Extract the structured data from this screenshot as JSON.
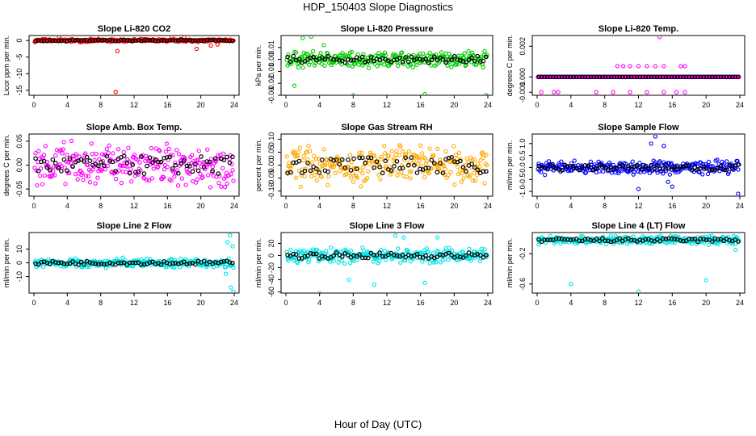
{
  "figure": {
    "title": "HDP_150403  Slope Diagnostics",
    "xlabel": "Hour of Day (UTC)"
  },
  "chart_data": [
    {
      "type": "scatter",
      "title": "Slope Li-820 CO2",
      "ylabel": "Licor ppm per min.",
      "color": "#ff0000",
      "xlim": [
        0,
        24
      ],
      "xticks": [
        0,
        4,
        8,
        12,
        16,
        20,
        24
      ],
      "xtick_labels": [
        "0",
        "4",
        "8",
        "12",
        "16",
        "20",
        "24"
      ],
      "ylim": [
        -16.5,
        1.5
      ],
      "yticks": [
        0,
        -5,
        -10,
        -15
      ],
      "ytick_labels": [
        "0",
        "-5",
        "-10",
        "-15"
      ],
      "series": {
        "base": 0,
        "spread": 0.5,
        "outliers": [
          [
            10,
            -3.2
          ],
          [
            9.8,
            -15.5
          ],
          [
            19.5,
            -2.5
          ],
          [
            21.2,
            -1.5
          ],
          [
            22,
            -1.2
          ],
          [
            18,
            1
          ],
          [
            16.5,
            1.2
          ],
          [
            3,
            1
          ]
        ]
      },
      "reference_color": "#000000"
    },
    {
      "type": "scatter",
      "title": "Slope Li-820 Pressure",
      "ylabel": "kPa per min.",
      "color": "#00cc00",
      "xlim": [
        0,
        24
      ],
      "xticks": [
        0,
        4,
        8,
        12,
        16,
        20,
        24
      ],
      "xtick_labels": [
        "0",
        "4",
        "8",
        "12",
        "16",
        "20",
        "24"
      ],
      "ylim": [
        -0.03,
        0.02
      ],
      "yticks": [
        0.01,
        0.0,
        -0.01,
        -0.02,
        -0.03
      ],
      "ytick_labels": [
        "0.01",
        "0.00",
        "-0.01",
        "-0.02",
        "-0.03"
      ],
      "series": {
        "base": 0.0,
        "spread": 0.008,
        "outliers": [
          [
            8,
            -0.03
          ],
          [
            16.5,
            -0.029
          ],
          [
            23.8,
            -0.03
          ],
          [
            1,
            -0.022
          ],
          [
            2,
            0.018
          ],
          [
            3,
            0.019
          ],
          [
            4.5,
            0.012
          ]
        ]
      },
      "reference_color": "#000000"
    },
    {
      "type": "scatter",
      "title": "Slope Li-820 Temp.",
      "ylabel": "degrees C per min.",
      "color": "#ff00ff",
      "xlim": [
        0,
        24
      ],
      "xticks": [
        0,
        4,
        8,
        12,
        16,
        20,
        24
      ],
      "xtick_labels": [
        "0",
        "4",
        "8",
        "12",
        "16",
        "20",
        "24"
      ],
      "ylim": [
        -0.0012,
        0.0027
      ],
      "yticks": [
        0.002,
        0.0,
        -0.001
      ],
      "ytick_labels": [
        "0.002",
        "0.000",
        "-0.001"
      ],
      "series": {
        "base": 0.0,
        "spread": 0,
        "outliers": [
          [
            9.5,
            0.0007
          ],
          [
            10.2,
            0.0007
          ],
          [
            11,
            0.0007
          ],
          [
            12,
            0.0007
          ],
          [
            13,
            0.0007
          ],
          [
            14,
            0.0007
          ],
          [
            14.5,
            0.0026
          ],
          [
            15,
            0.0007
          ],
          [
            17,
            0.0007
          ],
          [
            17.5,
            0.0007
          ],
          [
            0.5,
            -0.001
          ],
          [
            2,
            -0.001
          ],
          [
            2.5,
            -0.001
          ],
          [
            7,
            -0.001
          ],
          [
            9,
            -0.001
          ],
          [
            11,
            -0.001
          ],
          [
            13,
            -0.001
          ],
          [
            15,
            -0.001
          ],
          [
            16.5,
            -0.001
          ],
          [
            17.5,
            -0.001
          ]
        ]
      },
      "reference_color": "#000000"
    },
    {
      "type": "scatter",
      "title": "Slope Amb. Box Temp.",
      "ylabel": "degrees C per min.",
      "color": "#ff00ff",
      "xlim": [
        0,
        24
      ],
      "xticks": [
        0,
        4,
        8,
        12,
        16,
        20,
        24
      ],
      "xtick_labels": [
        "0",
        "4",
        "8",
        "12",
        "16",
        "20",
        "24"
      ],
      "ylim": [
        -0.065,
        0.065
      ],
      "yticks": [
        0.05,
        0.0,
        -0.05
      ],
      "ytick_labels": [
        "0.05",
        "0.00",
        "-0.05"
      ],
      "series": {
        "base": 0.0,
        "spread": 0.055,
        "outliers": []
      },
      "reference_color": "#000000"
    },
    {
      "type": "scatter",
      "title": "Slope Gas Stream RH",
      "ylabel": "percent per min.",
      "color": "#ffaa00",
      "xlim": [
        0,
        24
      ],
      "xticks": [
        0,
        4,
        8,
        12,
        16,
        20,
        24
      ],
      "xtick_labels": [
        "0",
        "4",
        "8",
        "12",
        "16",
        "20",
        "24"
      ],
      "ylim": [
        -0.12,
        0.12
      ],
      "yticks": [
        0.1,
        0.05,
        0.0,
        -0.05,
        -0.1
      ],
      "ytick_labels": [
        "0.10",
        "0.05",
        "0.00",
        "-0.05",
        "-0.10"
      ],
      "series": {
        "base": 0.0,
        "spread": 0.09,
        "outliers": []
      },
      "reference_color": "#000000"
    },
    {
      "type": "scatter",
      "title": "Slope Sample Flow",
      "ylabel": "ml/min per min.",
      "color": "#0000ff",
      "xlim": [
        0,
        24
      ],
      "xticks": [
        0,
        4,
        8,
        12,
        16,
        20,
        24
      ],
      "xtick_labels": [
        "0",
        "4",
        "8",
        "12",
        "16",
        "20",
        "24"
      ],
      "ylim": [
        -1.2,
        1.4
      ],
      "yticks": [
        1.0,
        0.5,
        0.0,
        -0.5,
        -1.0
      ],
      "ytick_labels": [
        "1.0",
        "0.5",
        "0.0",
        "-0.5",
        "-1.0"
      ],
      "series": {
        "base": 0.0,
        "spread": 0.35,
        "outliers": [
          [
            14,
            1.3
          ],
          [
            13.5,
            1.0
          ],
          [
            15,
            0.9
          ],
          [
            23.8,
            -1.1
          ],
          [
            12,
            -0.9
          ],
          [
            16,
            -0.8
          ],
          [
            15.5,
            -0.6
          ]
        ]
      },
      "reference_color": "#000000"
    },
    {
      "type": "scatter",
      "title": "Slope Line 2 Flow",
      "ylabel": "ml/min per min.",
      "color": "#00e5e5",
      "xlim": [
        0,
        24
      ],
      "xticks": [
        0,
        4,
        8,
        12,
        16,
        20,
        24
      ],
      "xtick_labels": [
        "0",
        "4",
        "8",
        "12",
        "16",
        "20",
        "24"
      ],
      "ylim": [
        -22,
        22
      ],
      "yticks": [
        10,
        0,
        -10
      ],
      "ytick_labels": [
        "10",
        "0",
        "-10"
      ],
      "series": {
        "base": 0,
        "spread": 4,
        "outliers": [
          [
            23.5,
            20
          ],
          [
            23.2,
            15
          ],
          [
            23.8,
            12
          ],
          [
            23.6,
            -18
          ],
          [
            23.9,
            -21
          ],
          [
            23,
            -8
          ]
        ]
      },
      "reference_color": "#000000"
    },
    {
      "type": "scatter",
      "title": "Slope Line 3 Flow",
      "ylabel": "ml/min per min.",
      "color": "#00e5e5",
      "xlim": [
        0,
        24
      ],
      "xticks": [
        0,
        4,
        8,
        12,
        16,
        20,
        24
      ],
      "xtick_labels": [
        "0",
        "4",
        "8",
        "12",
        "16",
        "20",
        "24"
      ],
      "ylim": [
        -62,
        38
      ],
      "yticks": [
        20,
        0,
        -20,
        -40,
        -60
      ],
      "ytick_labels": [
        "20",
        "0",
        "-20",
        "-40",
        "-60"
      ],
      "series": {
        "base": 0,
        "spread": 14,
        "outliers": [
          [
            13,
            33
          ],
          [
            14,
            30
          ],
          [
            18,
            30
          ],
          [
            10.5,
            -48
          ],
          [
            7.5,
            -40
          ],
          [
            4,
            -62
          ],
          [
            16.5,
            -45
          ]
        ]
      },
      "reference_color": "#000000"
    },
    {
      "type": "scatter",
      "title": "Slope Line 4 (LT) Flow",
      "ylabel": "ml/min per min.",
      "color": "#00e5e5",
      "xlim": [
        0,
        24
      ],
      "xticks": [
        0,
        4,
        8,
        12,
        16,
        20,
        24
      ],
      "xtick_labels": [
        "0",
        "4",
        "8",
        "12",
        "16",
        "20",
        "24"
      ],
      "ylim": [
        -0.72,
        0.08
      ],
      "yticks": [
        -0.2,
        -0.6
      ],
      "ytick_labels": [
        "-0.2",
        "-0.6"
      ],
      "series": {
        "base": -0.02,
        "spread": 0.07,
        "outliers": [
          [
            4,
            -0.6
          ],
          [
            12,
            -0.7
          ],
          [
            20,
            -0.55
          ],
          [
            23.5,
            -0.15
          ]
        ]
      },
      "reference_color": "#000000"
    }
  ]
}
